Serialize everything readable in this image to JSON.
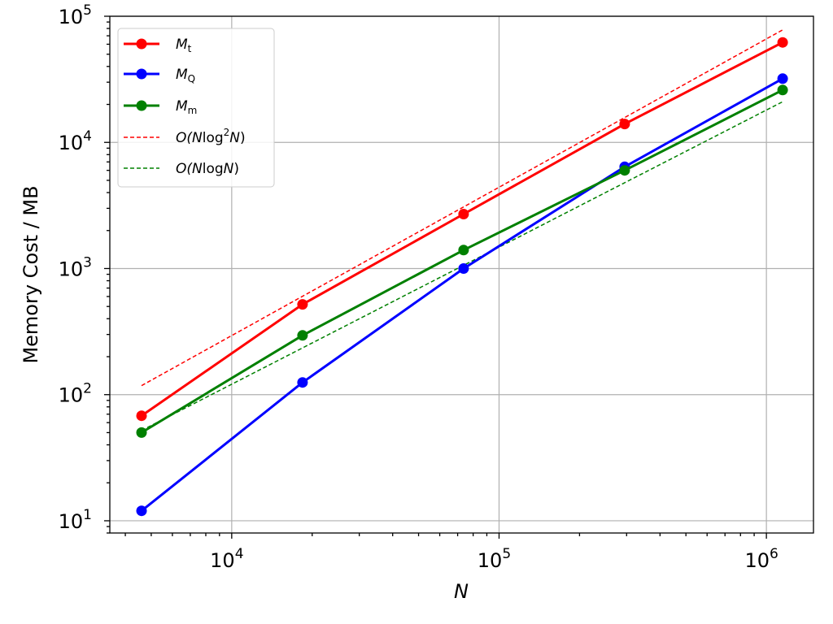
{
  "chart_data": {
    "type": "line",
    "xscale": "log",
    "yscale": "log",
    "xlim": [
      3500,
      1500000
    ],
    "ylim": [
      8,
      100000
    ],
    "grid": true,
    "legend_position": "top-left",
    "xlabel": "N",
    "ylabel": "Memory Cost / MB",
    "x_ticks": [
      {
        "value": 10000,
        "base": "10",
        "exp": "4"
      },
      {
        "value": 100000,
        "base": "10",
        "exp": "5"
      },
      {
        "value": 1000000,
        "base": "10",
        "exp": "6"
      }
    ],
    "y_ticks": [
      {
        "value": 10,
        "base": "10",
        "exp": "1"
      },
      {
        "value": 100,
        "base": "10",
        "exp": "2"
      },
      {
        "value": 1000,
        "base": "10",
        "exp": "3"
      },
      {
        "value": 10000,
        "base": "10",
        "exp": "4"
      },
      {
        "value": 100000,
        "base": "10",
        "exp": "5"
      }
    ],
    "series": [
      {
        "key": "mt",
        "label_main": "M",
        "label_sub": "t",
        "color": "#ff0000",
        "style": "solid-marker",
        "x": [
          4600,
          18400,
          73700,
          295000,
          1150000
        ],
        "y": [
          68,
          520,
          2700,
          14000,
          62000
        ]
      },
      {
        "key": "mq",
        "label_main": "M",
        "label_sub": "Q",
        "color": "#0000ff",
        "style": "solid-marker",
        "x": [
          4600,
          18400,
          73700,
          295000,
          1150000
        ],
        "y": [
          12,
          125,
          1000,
          6400,
          32000
        ]
      },
      {
        "key": "mm",
        "label_main": "M",
        "label_sub": "m",
        "color": "#008000",
        "style": "solid-marker",
        "x": [
          4600,
          18400,
          73700,
          295000,
          1150000
        ],
        "y": [
          50,
          295,
          1400,
          6000,
          26000
        ]
      },
      {
        "key": "nlog2n",
        "label_pre": "O(",
        "label_n": "N",
        "label_log": "log",
        "label_sup": "2",
        "label_n2": "N",
        "label_post": ")",
        "color": "#ff0000",
        "style": "dashed",
        "x": [
          4600,
          1150000
        ],
        "y": [
          118,
          78000
        ]
      },
      {
        "key": "nlogn",
        "label_pre": "O(",
        "label_n": "N",
        "label_log": "log",
        "label_n2": "N",
        "label_post": ")",
        "color": "#008000",
        "style": "dashed",
        "x": [
          4600,
          1150000
        ],
        "y": [
          52,
          21000
        ]
      }
    ]
  }
}
